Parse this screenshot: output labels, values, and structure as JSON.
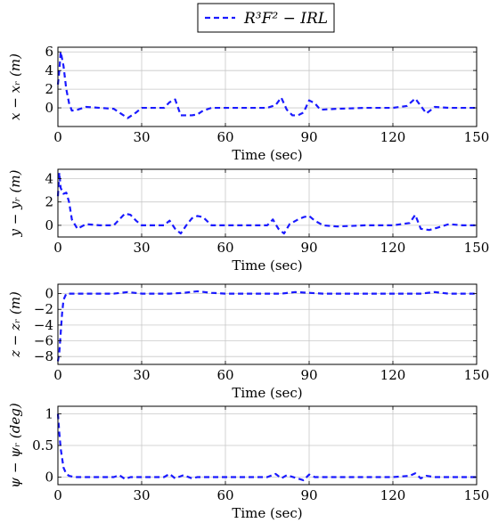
{
  "legend": {
    "label": "R³F² − IRL",
    "position": "top-center"
  },
  "colors": {
    "series": "#1a1aff",
    "grid": "#c8c8c8",
    "axis": "#000000"
  },
  "chart_data": [
    {
      "type": "line",
      "ylabel": "x − xᵣ (m)",
      "xlabel": "Time (sec)",
      "xlim": [
        0,
        150
      ],
      "ylim": [
        -2,
        6.5
      ],
      "xticks": [
        0,
        30,
        60,
        90,
        120,
        150
      ],
      "yticks": [
        0,
        2,
        4,
        6
      ],
      "grid": true,
      "series": [
        {
          "x": [
            0,
            0.5,
            1,
            2,
            3,
            4,
            5,
            7,
            10,
            15,
            20,
            22,
            25,
            28,
            30,
            35,
            38,
            40,
            42,
            44,
            46,
            48,
            50,
            52,
            55,
            60,
            65,
            70,
            75,
            78,
            80,
            82,
            84,
            86,
            88,
            90,
            92,
            94,
            100,
            110,
            120,
            125,
            128,
            130,
            132,
            135,
            140,
            145,
            150
          ],
          "y": [
            2.5,
            4.0,
            6.0,
            4.5,
            2.0,
            0.5,
            -0.3,
            -0.2,
            0.1,
            0.0,
            -0.1,
            -0.5,
            -1.1,
            -0.5,
            0.0,
            0.0,
            0.0,
            0.6,
            0.9,
            -0.8,
            -0.8,
            -0.8,
            -0.7,
            -0.3,
            0.0,
            0.0,
            0.0,
            0.0,
            0.0,
            0.3,
            1.1,
            -0.2,
            -0.8,
            -0.8,
            -0.5,
            0.8,
            0.5,
            -0.2,
            -0.1,
            0.0,
            0.0,
            0.2,
            1.0,
            0.2,
            -0.6,
            0.1,
            0.0,
            0.0,
            0.0
          ]
        }
      ]
    },
    {
      "type": "line",
      "ylabel": "y − yᵣ (m)",
      "xlabel": "Time (sec)",
      "xlim": [
        0,
        150
      ],
      "ylim": [
        -1,
        4.8
      ],
      "xticks": [
        0,
        30,
        60,
        90,
        120,
        150
      ],
      "yticks": [
        0,
        2,
        4
      ],
      "grid": true,
      "series": [
        {
          "x": [
            0,
            0.5,
            1,
            2,
            3,
            4,
            5,
            7,
            10,
            15,
            20,
            22,
            24,
            26,
            28,
            30,
            35,
            38,
            40,
            42,
            44,
            46,
            48,
            50,
            52,
            55,
            60,
            65,
            70,
            75,
            77,
            79,
            81,
            83,
            86,
            88,
            90,
            92,
            95,
            100,
            110,
            120,
            126,
            128,
            130,
            133,
            136,
            140,
            145,
            150
          ],
          "y": [
            2.5,
            4.5,
            3.2,
            2.7,
            2.8,
            2.0,
            0.5,
            -0.3,
            0.1,
            0.0,
            0.0,
            0.5,
            1.0,
            0.9,
            0.4,
            0.0,
            0.0,
            0.0,
            0.4,
            -0.3,
            -0.7,
            0.0,
            0.6,
            0.8,
            0.7,
            0.0,
            0.0,
            0.0,
            0.0,
            0.0,
            0.5,
            -0.3,
            -0.7,
            0.1,
            0.5,
            0.7,
            0.8,
            0.4,
            0.0,
            -0.1,
            0.0,
            0.0,
            0.2,
            0.9,
            -0.3,
            -0.4,
            -0.2,
            0.1,
            0.0,
            0.0
          ]
        }
      ]
    },
    {
      "type": "line",
      "ylabel": "z − zᵣ (m)",
      "xlabel": "Time (sec)",
      "xlim": [
        0,
        150
      ],
      "ylim": [
        -9,
        1.2
      ],
      "xticks": [
        0,
        30,
        60,
        90,
        120,
        150
      ],
      "yticks": [
        0,
        -2,
        -4,
        -6,
        -8
      ],
      "grid": true,
      "series": [
        {
          "x": [
            0,
            0.5,
            1,
            1.5,
            2,
            3,
            5,
            10,
            15,
            20,
            25,
            30,
            35,
            40,
            45,
            50,
            55,
            60,
            65,
            70,
            75,
            80,
            85,
            90,
            95,
            100,
            110,
            120,
            130,
            135,
            140,
            145,
            150
          ],
          "y": [
            -8.6,
            -7.5,
            -5.0,
            -2.5,
            -0.8,
            0.0,
            0.0,
            0.0,
            0.0,
            0.0,
            0.2,
            0.0,
            0.0,
            0.0,
            0.1,
            0.3,
            0.1,
            0.0,
            0.0,
            0.0,
            0.0,
            0.0,
            0.2,
            0.1,
            0.0,
            0.0,
            0.0,
            0.0,
            0.0,
            0.2,
            0.0,
            0.0,
            0.0
          ]
        }
      ]
    },
    {
      "type": "line",
      "ylabel": "ψ − ψᵣ (deg)",
      "xlabel": "Time (sec)",
      "xlim": [
        0,
        150
      ],
      "ylim": [
        -0.12,
        1.12
      ],
      "xticks": [
        0,
        30,
        60,
        90,
        120,
        150
      ],
      "yticks": [
        0,
        0.5,
        1
      ],
      "grid": true,
      "series": [
        {
          "x": [
            0,
            0.5,
            1,
            1.5,
            2,
            3,
            4,
            6,
            10,
            15,
            20,
            22,
            24,
            26,
            28,
            30,
            35,
            38,
            40,
            42,
            45,
            48,
            50,
            55,
            60,
            65,
            70,
            75,
            78,
            80,
            82,
            85,
            88,
            90,
            92,
            95,
            100,
            110,
            120,
            126,
            128,
            130,
            132,
            135,
            140,
            145,
            150
          ],
          "y": [
            1.0,
            0.7,
            0.45,
            0.3,
            0.15,
            0.05,
            0.02,
            0.0,
            0.0,
            0.0,
            0.0,
            0.03,
            -0.03,
            0.0,
            0.0,
            0.0,
            0.0,
            0.0,
            0.05,
            -0.02,
            0.03,
            -0.02,
            0.0,
            0.0,
            0.0,
            0.0,
            0.0,
            0.0,
            0.05,
            -0.02,
            0.03,
            -0.01,
            -0.05,
            0.04,
            0.0,
            0.0,
            0.0,
            0.0,
            0.0,
            0.02,
            0.06,
            -0.02,
            0.02,
            0.0,
            0.0,
            0.0,
            0.0
          ]
        }
      ]
    }
  ]
}
